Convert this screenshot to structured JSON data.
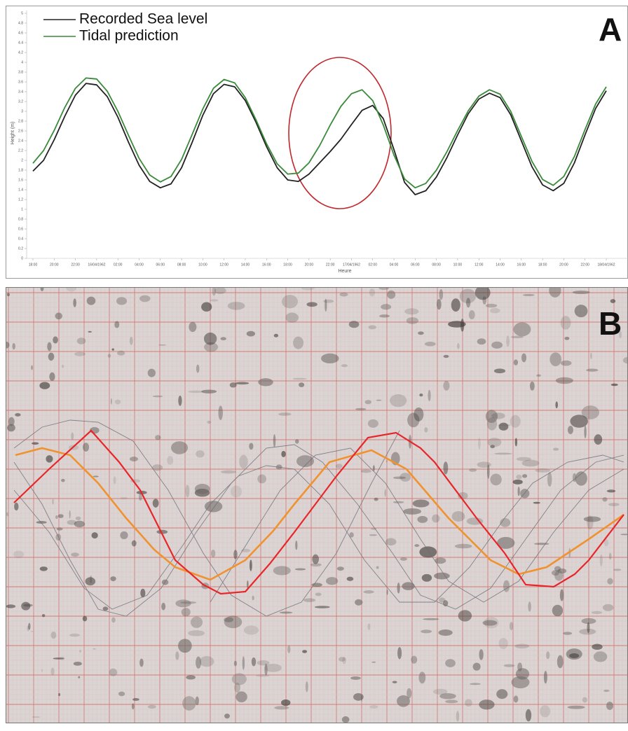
{
  "chart_data": {
    "type": "line",
    "panel_label": "A",
    "x_label": "Heure",
    "y_label": "Height (m)",
    "categories": [
      "18:00",
      null,
      "20:00",
      null,
      "22:00",
      null,
      "16/04/1962",
      null,
      "02:00",
      null,
      "04:00",
      null,
      "06:00",
      null,
      "08:00",
      null,
      "10:00",
      null,
      "12:00",
      null,
      "14:00",
      null,
      "16:00",
      null,
      "18:00",
      null,
      "20:00",
      null,
      "22:00",
      null,
      "17/04/1962",
      null,
      "02:00",
      null,
      "04:00",
      null,
      "06:00",
      null,
      "08:00",
      null,
      "10:00",
      null,
      "12:00",
      null,
      "14:00",
      null,
      "16:00",
      null,
      "18:00",
      null,
      "20:00",
      null,
      "22:00",
      null,
      "18/04/1962"
    ],
    "series": [
      {
        "name": "Recorded Sea level",
        "color": "#222222",
        "values": [
          1.78,
          2.0,
          2.42,
          2.9,
          3.33,
          3.57,
          3.54,
          3.3,
          2.88,
          2.37,
          1.9,
          1.57,
          1.44,
          1.52,
          1.85,
          2.37,
          2.92,
          3.36,
          3.55,
          3.5,
          3.22,
          2.78,
          2.28,
          1.85,
          1.6,
          1.57,
          1.72,
          1.95,
          2.18,
          2.43,
          2.73,
          3.02,
          3.12,
          2.85,
          2.22,
          1.55,
          1.3,
          1.38,
          1.66,
          2.06,
          2.52,
          2.95,
          3.25,
          3.37,
          3.28,
          2.93,
          2.4,
          1.87,
          1.5,
          1.38,
          1.53,
          1.95,
          2.52,
          3.06,
          3.42
        ]
      },
      {
        "name": "Tidal prediction",
        "color": "#3a8a3a",
        "values": [
          1.94,
          2.2,
          2.61,
          3.08,
          3.47,
          3.68,
          3.66,
          3.41,
          3.0,
          2.51,
          2.04,
          1.7,
          1.56,
          1.67,
          2.02,
          2.53,
          3.05,
          3.47,
          3.65,
          3.58,
          3.28,
          2.83,
          2.34,
          1.93,
          1.72,
          1.74,
          1.95,
          2.3,
          2.72,
          3.1,
          3.36,
          3.44,
          3.22,
          2.72,
          2.11,
          1.62,
          1.44,
          1.53,
          1.8,
          2.18,
          2.61,
          3.01,
          3.31,
          3.44,
          3.35,
          3.0,
          2.49,
          1.98,
          1.61,
          1.49,
          1.67,
          2.08,
          2.63,
          3.15,
          3.5
        ]
      }
    ],
    "ylim": [
      0,
      5
    ],
    "yticks": [
      0,
      0.2,
      0.4,
      0.6,
      0.8,
      1,
      1.2,
      1.4,
      1.6,
      1.8,
      2,
      2.2,
      2.4,
      2.6,
      2.8,
      3,
      3.2,
      3.4,
      3.6,
      3.8,
      4,
      4.2,
      4.4,
      4.6,
      4.8,
      5
    ],
    "legend": "upper left"
  },
  "panel_b": {
    "label": "B"
  }
}
